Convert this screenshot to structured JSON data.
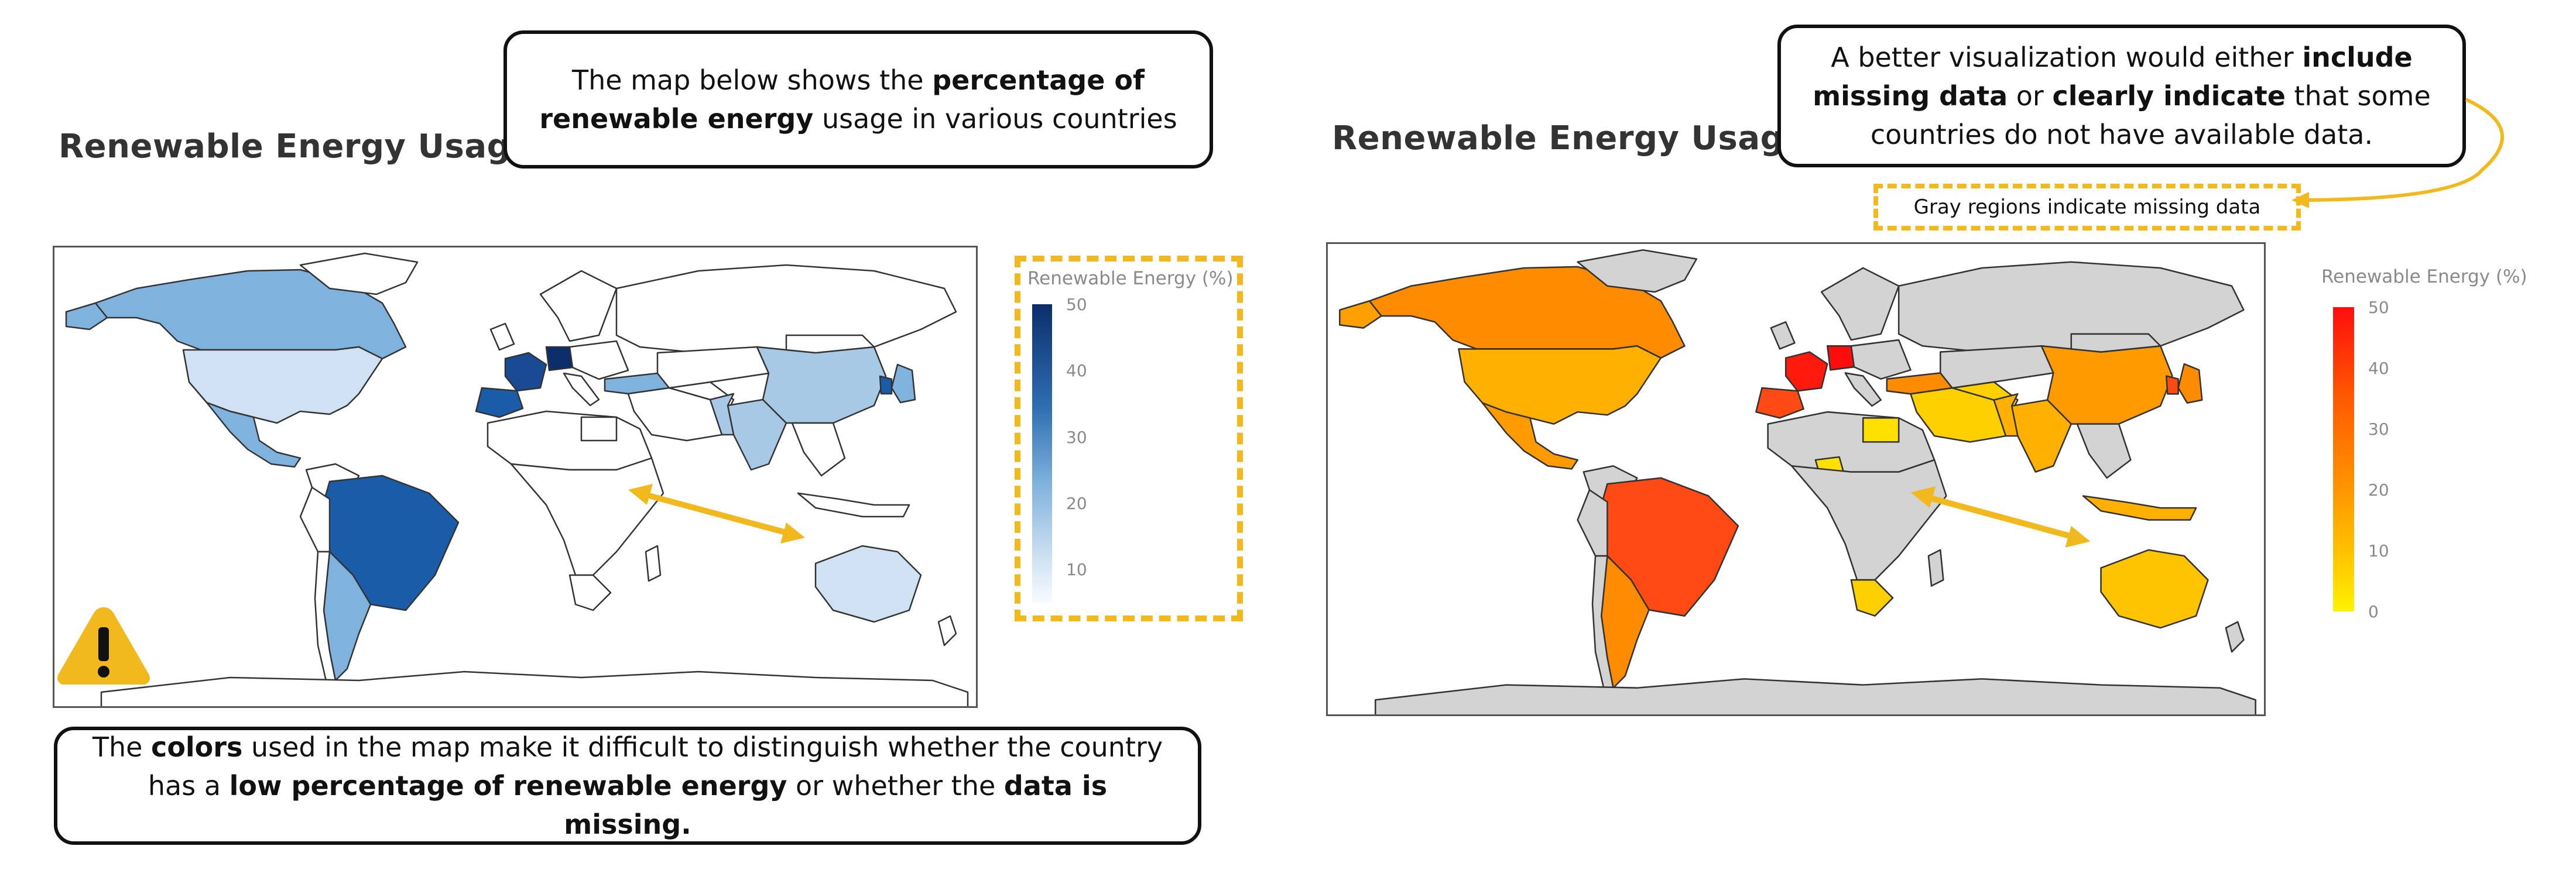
{
  "left_panel": {
    "title": "Renewable Energy Usage",
    "top_callout": {
      "pre": "The map below shows the ",
      "bold": "percentage of renewable energy",
      "post": " usage in various countries"
    },
    "bottom_callout": {
      "p1": "The ",
      "b1": "colors",
      "p2": " used in the map make it difficult to distinguish whether the country has a ",
      "b2": "low percentage of renewable energy",
      "p3": " or whether the ",
      "b3": "data is missing."
    },
    "legend": {
      "title": "Renewable Energy (%)",
      "ticks": [
        "50",
        "40",
        "30",
        "20",
        "10"
      ],
      "scale_max": 50,
      "scale_min": 5,
      "colors": {
        "high": "#0b2e6b",
        "mid": "#5f97c8",
        "low": "#f3f8fd"
      }
    },
    "warning_icon": "warning-icon",
    "arrow": "double-arrow"
  },
  "right_panel": {
    "title": "Renewable Energy Usage",
    "top_callout": {
      "p1": "A better visualization would either ",
      "b1": "include missing data",
      "p2": " or ",
      "b2": "clearly indicate",
      "p3": " that some countries do not have available data."
    },
    "missing_note": "Gray regions indicate missing data",
    "legend": {
      "title": "Renewable Energy (%)",
      "ticks": [
        "50",
        "40",
        "30",
        "20",
        "10",
        "0"
      ],
      "scale_max": 50,
      "scale_min": 0,
      "colors": {
        "high": "#ff0d0d",
        "mid": "#ff8a00",
        "low": "#fff200",
        "missing": "#d3d3d3"
      }
    },
    "arrow": "double-arrow"
  },
  "colors": {
    "accent": "#f2b91f",
    "border": "#111111"
  }
}
